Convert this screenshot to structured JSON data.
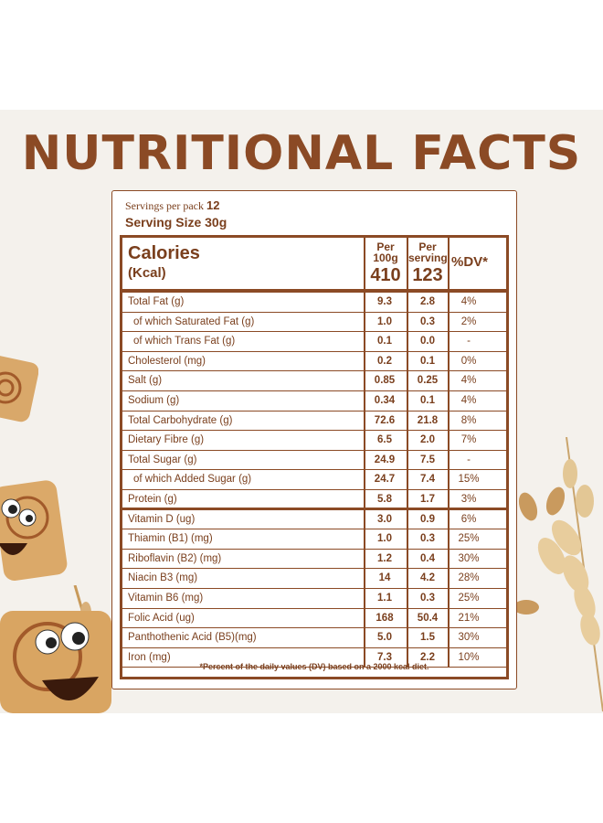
{
  "title": "NUTRITIONAL FACTS",
  "servings_label": "Servings per pack",
  "servings_value": "12",
  "serving_size": "Serving Size 30g",
  "header": {
    "calories": "Calories",
    "kcal": "(Kcal)",
    "per100_label": "Per 100g",
    "per100_value": "410",
    "perserving_label": "Per serving",
    "perserving_value": "123",
    "dv_label": "%DV*"
  },
  "rows": [
    {
      "name": "Total Fat (g)",
      "per100": "9.3",
      "serving": "2.8",
      "dv": "4%"
    },
    {
      "name": "of which Saturated Fat (g)",
      "per100": "1.0",
      "serving": "0.3",
      "dv": "2%"
    },
    {
      "name": "of which Trans Fat (g)",
      "per100": "0.1",
      "serving": "0.0",
      "dv": "-"
    },
    {
      "name": "Cholesterol (mg)",
      "per100": "0.2",
      "serving": "0.1",
      "dv": "0%"
    },
    {
      "name": "Salt (g)",
      "per100": "0.85",
      "serving": "0.25",
      "dv": "4%"
    },
    {
      "name": "Sodium (g)",
      "per100": "0.34",
      "serving": "0.1",
      "dv": "4%"
    },
    {
      "name": "Total Carbohydrate (g)",
      "per100": "72.6",
      "serving": "21.8",
      "dv": "8%"
    },
    {
      "name": "Dietary Fibre (g)",
      "per100": "6.5",
      "serving": "2.0",
      "dv": "7%"
    },
    {
      "name": "Total Sugar (g)",
      "per100": "24.9",
      "serving": "7.5",
      "dv": "-"
    },
    {
      "name": "of which Added Sugar (g)",
      "per100": "24.7",
      "serving": "7.4",
      "dv": "15%"
    },
    {
      "name": "Protein (g)",
      "per100": "5.8",
      "serving": "1.7",
      "dv": "3%"
    },
    {
      "name": "Vitamin D (ug)",
      "per100": "3.0",
      "serving": "0.9",
      "dv": "6%"
    },
    {
      "name": "Thiamin (B1) (mg)",
      "per100": "1.0",
      "serving": "0.3",
      "dv": "25%"
    },
    {
      "name": "Riboflavin (B2) (mg)",
      "per100": "1.2",
      "serving": "0.4",
      "dv": "30%"
    },
    {
      "name": "Niacin B3 (mg)",
      "per100": "14",
      "serving": "4.2",
      "dv": "28%"
    },
    {
      "name": "Vitamin B6 (mg)",
      "per100": "1.1",
      "serving": "0.3",
      "dv": "25%"
    },
    {
      "name": "Folic Acid (ug)",
      "per100": "168",
      "serving": "50.4",
      "dv": "21%"
    },
    {
      "name": "Panthothenic Acid (B5)(mg)",
      "per100": "5.0",
      "serving": "1.5",
      "dv": "30%"
    },
    {
      "name": "Iron (mg)",
      "per100": "7.3",
      "serving": "2.2",
      "dv": "10%"
    }
  ],
  "footnote": "*Percent of the daily values (DV) based on a 2000 kcal diet.",
  "colors": {
    "brand": "#8b4a25",
    "background": "#f4f1ec"
  }
}
